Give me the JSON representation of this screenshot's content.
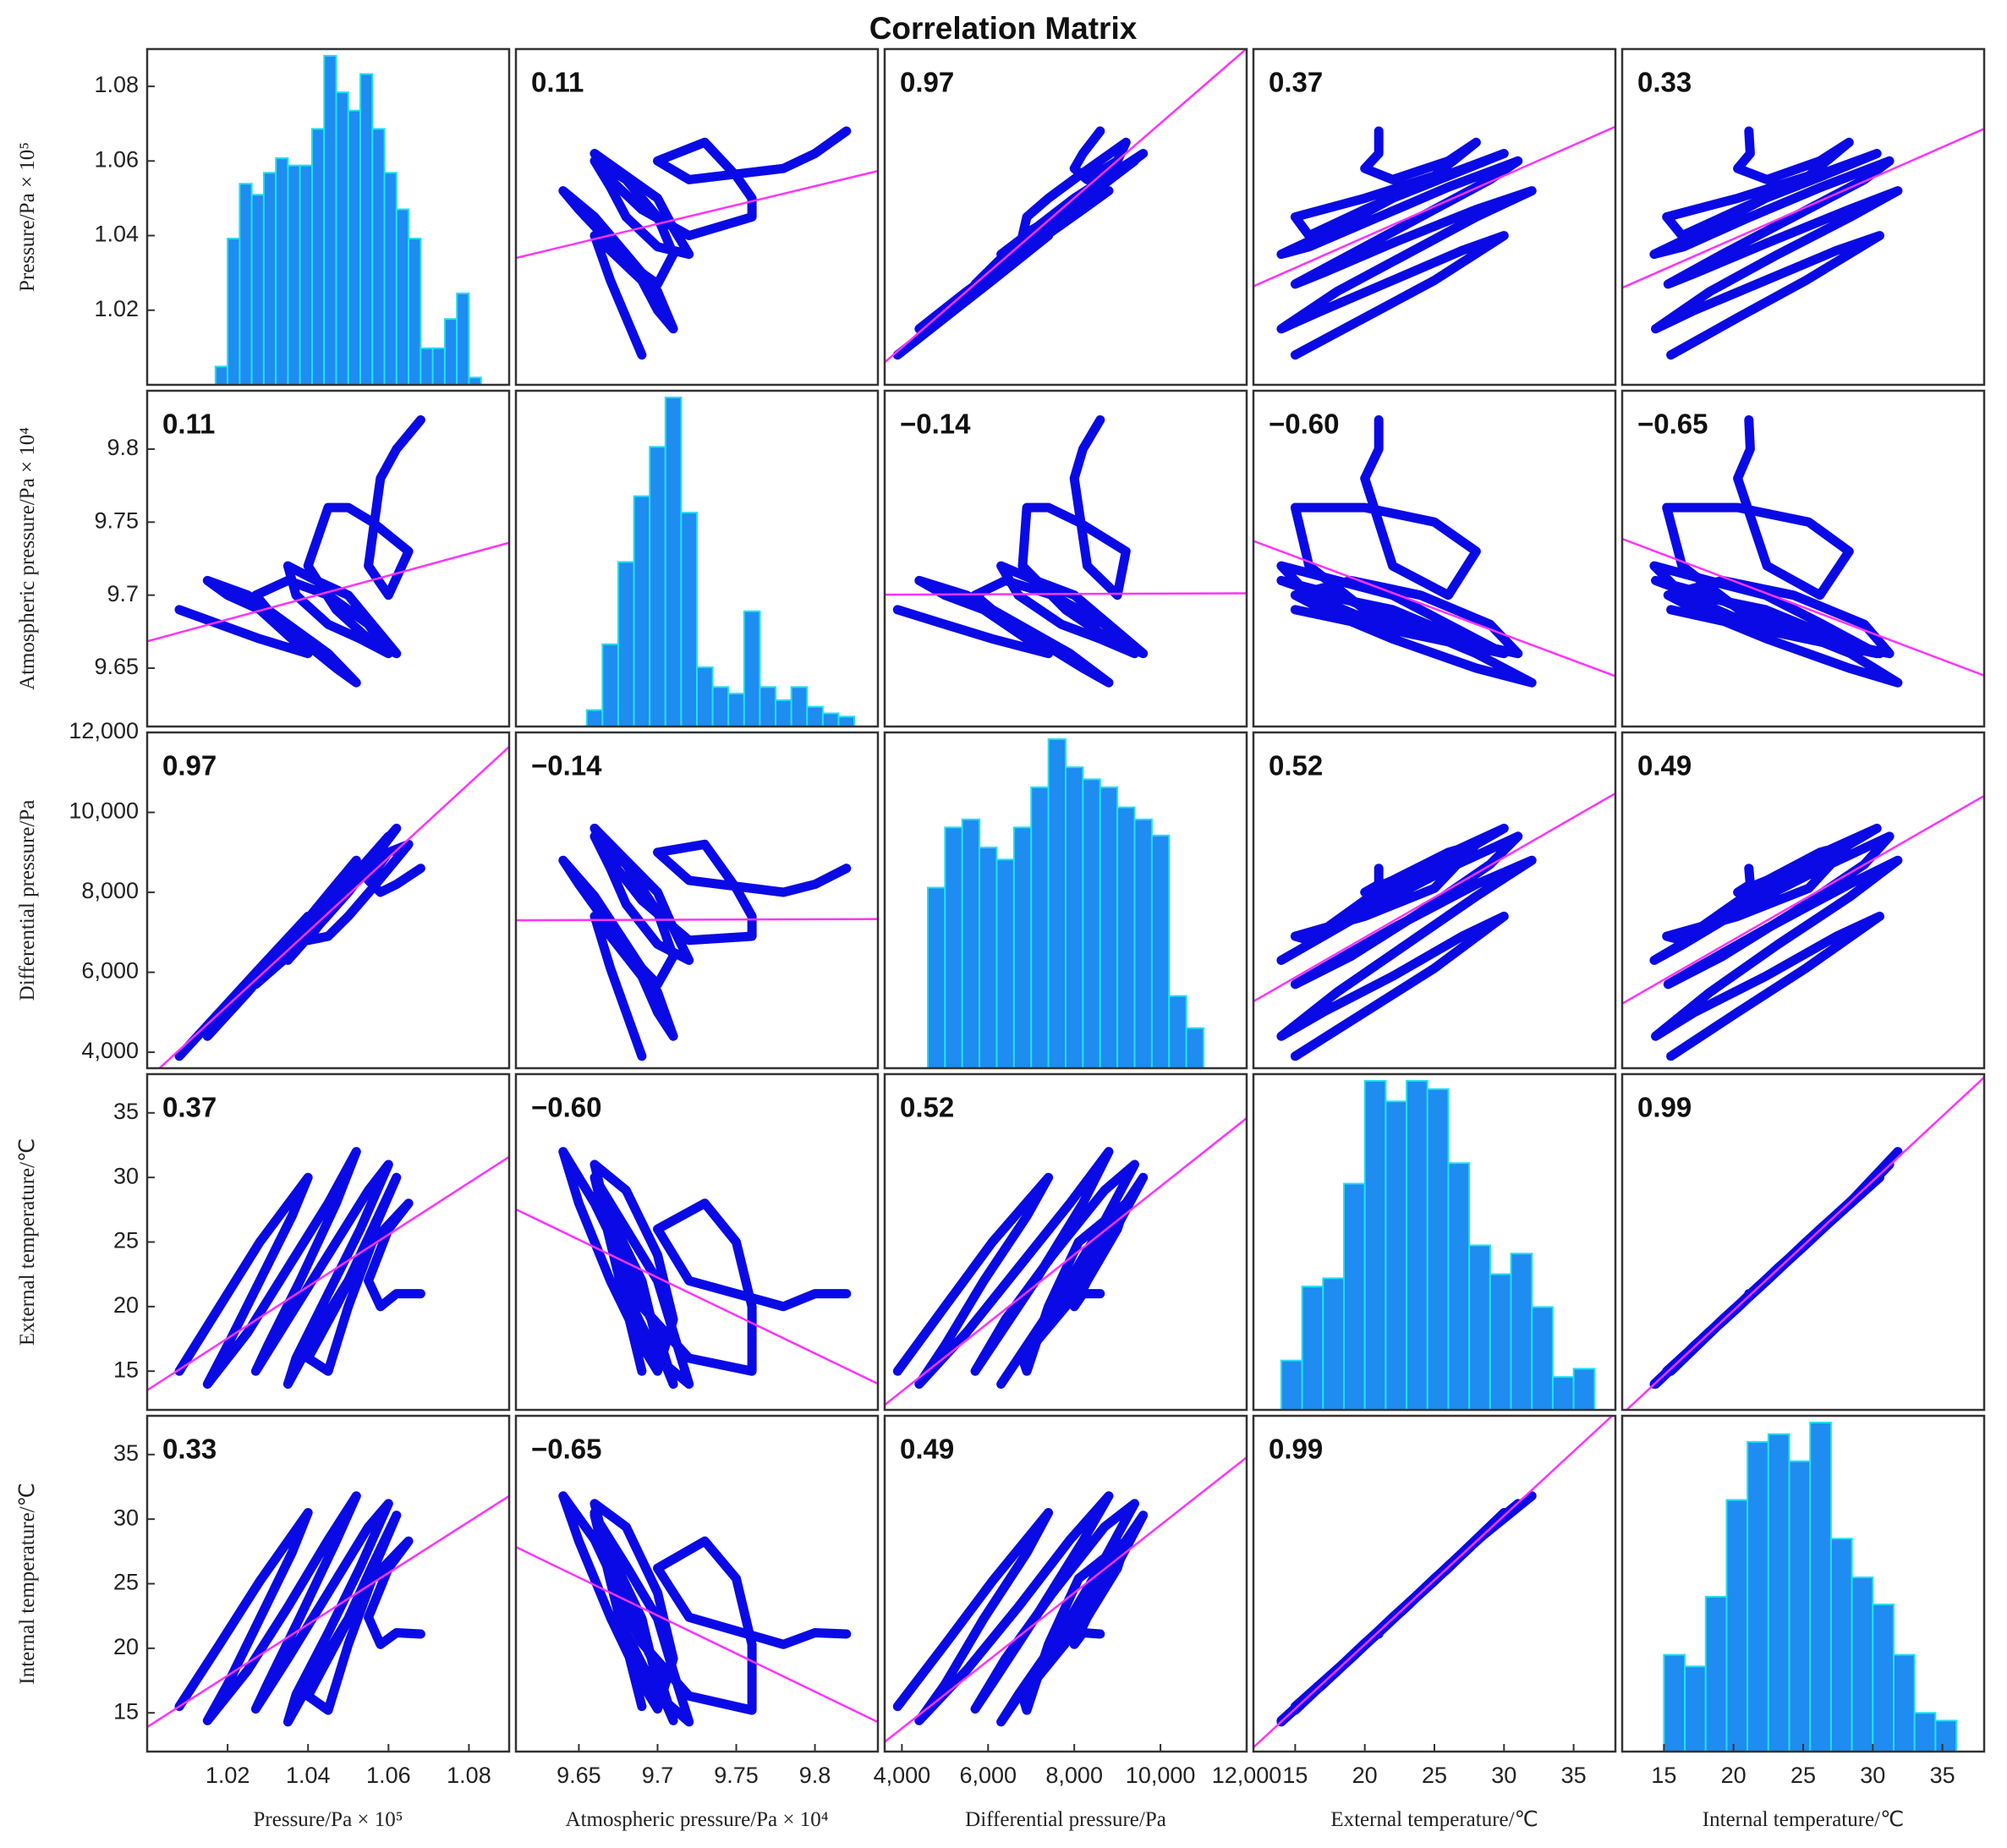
{
  "chart_data": {
    "type": "scatter_matrix",
    "title": "Correlation Matrix",
    "line_color": "#0a0ae6",
    "fit_color": "#ff33ff",
    "hist_color": "#1e8cf0",
    "hist_edge_color": "#22e0f0",
    "variables": [
      {
        "name": "Pressure/Pa × 10⁵",
        "lim": [
          1.0,
          1.09
        ],
        "ticks": [
          1.02,
          1.04,
          1.06,
          1.08
        ],
        "values": [
          1.008,
          1.018,
          1.028,
          1.04,
          1.036,
          1.028,
          1.02,
          1.015,
          1.025,
          1.035,
          1.045,
          1.052,
          1.047,
          1.038,
          1.03,
          1.027,
          1.035,
          1.045,
          1.055,
          1.06,
          1.053,
          1.045,
          1.037,
          1.035,
          1.042,
          1.05,
          1.056,
          1.062,
          1.055,
          1.047,
          1.04,
          1.045,
          1.05,
          1.056,
          1.065,
          1.06,
          1.055,
          1.058,
          1.062,
          1.068
        ],
        "hist": {
          "bins": [
            1.017,
            1.02,
            1.023,
            1.026,
            1.029,
            1.032,
            1.035,
            1.038,
            1.041,
            1.044,
            1.047,
            1.05,
            1.053,
            1.056,
            1.059,
            1.062,
            1.065,
            1.068,
            1.071,
            1.074,
            1.077,
            1.08,
            1.083
          ],
          "counts": [
            5,
            40,
            55,
            52,
            58,
            62,
            60,
            60,
            70,
            90,
            80,
            75,
            85,
            70,
            58,
            48,
            40,
            10,
            10,
            18,
            25,
            2
          ]
        }
      },
      {
        "name": "Atmospheric pressure/Pa × 10⁴",
        "lim": [
          9.61,
          9.84
        ],
        "ticks": [
          9.65,
          9.7,
          9.75,
          9.8
        ],
        "values": [
          9.69,
          9.68,
          9.67,
          9.66,
          9.67,
          9.69,
          9.7,
          9.71,
          9.7,
          9.68,
          9.66,
          9.64,
          9.65,
          9.67,
          9.69,
          9.7,
          9.71,
          9.7,
          9.68,
          9.66,
          9.67,
          9.68,
          9.7,
          9.72,
          9.71,
          9.7,
          9.68,
          9.66,
          9.67,
          9.69,
          9.72,
          9.76,
          9.76,
          9.75,
          9.73,
          9.7,
          9.72,
          9.78,
          9.8,
          9.82
        ],
        "hist": {
          "bins": [
            9.655,
            9.665,
            9.675,
            9.685,
            9.695,
            9.705,
            9.715,
            9.725,
            9.735,
            9.745,
            9.755,
            9.765,
            9.775,
            9.785,
            9.795,
            9.805,
            9.815,
            9.825
          ],
          "counts": [
            5,
            25,
            50,
            70,
            85,
            100,
            65,
            18,
            12,
            10,
            35,
            12,
            8,
            12,
            6,
            4,
            3
          ]
        }
      },
      {
        "name": "Differential pressure/Pa",
        "lim": [
          3600,
          12000
        ],
        "ticks": [
          {
            "value": 4000,
            "label": "4,000"
          },
          {
            "value": 6000,
            "label": "6,000"
          },
          {
            "value": 8000,
            "label": "8,000"
          },
          {
            "value": 10000,
            "label": "10,000"
          },
          {
            "value": 12000,
            "label": "12,000"
          }
        ],
        "values": [
          3900,
          5000,
          6100,
          7400,
          6900,
          5900,
          5000,
          4400,
          5500,
          6700,
          7900,
          8800,
          8200,
          7100,
          6100,
          5700,
          6400,
          7500,
          8700,
          9400,
          8600,
          7700,
          6700,
          6300,
          7100,
          8000,
          8800,
          9600,
          8800,
          7800,
          6800,
          6900,
          7400,
          8100,
          9200,
          9000,
          8300,
          8000,
          8200,
          8600
        ],
        "hist": {
          "bins": [
            4600,
            5000,
            5400,
            5800,
            6200,
            6600,
            7000,
            7400,
            7800,
            8200,
            8600,
            9000,
            9400,
            9800,
            10200,
            10600,
            11000
          ],
          "counts": [
            45,
            60,
            62,
            55,
            52,
            60,
            70,
            82,
            75,
            72,
            70,
            65,
            62,
            58,
            18,
            10
          ]
        }
      },
      {
        "name": "External temperature/℃",
        "lim": [
          12,
          38
        ],
        "ticks": [
          15,
          20,
          25,
          30,
          35
        ],
        "values": [
          15,
          20,
          25,
          30,
          27,
          22,
          17,
          14,
          18,
          23,
          28,
          32,
          28,
          22,
          17,
          15,
          19,
          24,
          29,
          31,
          26,
          21,
          16,
          14,
          18,
          22,
          26,
          30,
          25,
          20,
          16,
          15,
          20,
          25,
          28,
          26,
          22,
          20,
          21,
          21
        ],
        "hist": {
          "bins": [
            14,
            15.5,
            17,
            18.5,
            20,
            21.5,
            23,
            24.5,
            26,
            27.5,
            29,
            30.5,
            32,
            33.5,
            35,
            36.5
          ],
          "counts": [
            12,
            30,
            32,
            55,
            80,
            75,
            80,
            78,
            60,
            40,
            33,
            38,
            25,
            8,
            10
          ]
        }
      },
      {
        "name": "Internal temperature/℃",
        "lim": [
          12,
          38
        ],
        "ticks": [
          15,
          20,
          25,
          30,
          35
        ],
        "values": [
          15.5,
          20.3,
          25.2,
          30.5,
          27.4,
          22.3,
          17.2,
          14.4,
          18.3,
          23.2,
          28.4,
          31.8,
          28.3,
          22.4,
          17.3,
          15.3,
          19.2,
          24.3,
          29.4,
          31.2,
          26.3,
          21.2,
          16.4,
          14.3,
          18.2,
          22.3,
          26.4,
          30.3,
          25.2,
          20.4,
          16.3,
          15.2,
          20.3,
          25.4,
          28.3,
          26.2,
          22.4,
          20.3,
          21.2,
          21.1
        ],
        "hist": {
          "bins": [
            15,
            16.5,
            18,
            19.5,
            21,
            22.5,
            24,
            25.5,
            27,
            28.5,
            30,
            31.5,
            33,
            34.5,
            36
          ],
          "counts": [
            25,
            22,
            40,
            65,
            80,
            82,
            75,
            85,
            55,
            45,
            38,
            25,
            10,
            8
          ]
        }
      }
    ],
    "correlations": {
      "values": [
        [
          null,
          0.11,
          0.97,
          0.37,
          0.33
        ],
        [
          0.11,
          null,
          -0.14,
          -0.6,
          -0.65
        ],
        [
          0.97,
          -0.14,
          null,
          0.52,
          0.49
        ],
        [
          0.37,
          -0.6,
          0.52,
          null,
          0.99
        ],
        [
          0.33,
          -0.65,
          0.49,
          0.99,
          null
        ]
      ],
      "value_labels": [
        [
          null,
          "0.11",
          "0.97",
          "0.37",
          "0.33"
        ],
        [
          "0.11",
          null,
          "−0.14",
          "−0.60",
          "−0.65"
        ],
        [
          "0.97",
          "−0.14",
          null,
          "0.52",
          "0.49"
        ],
        [
          "0.37",
          "−0.60",
          "0.52",
          null,
          "0.99"
        ],
        [
          "0.33",
          "−0.65",
          "0.49",
          "0.99",
          null
        ]
      ]
    }
  }
}
